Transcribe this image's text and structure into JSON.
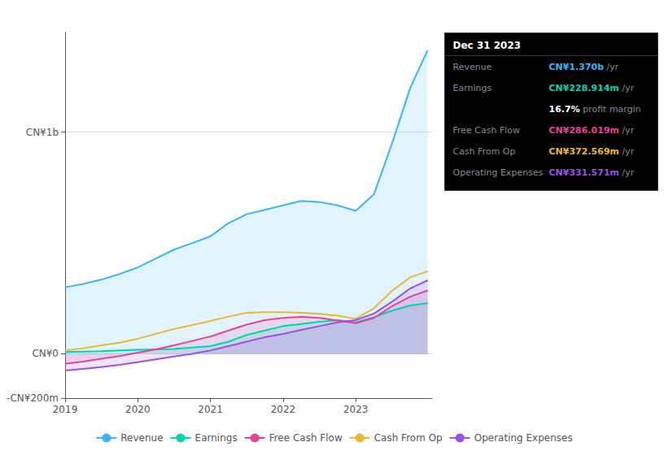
{
  "chart_data": {
    "type": "line",
    "x": [
      2019.0,
      2019.25,
      2019.5,
      2019.75,
      2020.0,
      2020.25,
      2020.5,
      2020.75,
      2021.0,
      2021.25,
      2021.5,
      2021.75,
      2022.0,
      2022.25,
      2022.5,
      2022.75,
      2023.0,
      2023.25,
      2023.5,
      2023.75,
      2023.99
    ],
    "series": [
      {
        "name": "Revenue",
        "color": "#39b4f5",
        "type": "area",
        "values": [
          300,
          315,
          335,
          360,
          390,
          430,
          470,
          500,
          530,
          590,
          630,
          650,
          670,
          690,
          685,
          670,
          645,
          720,
          950,
          1200,
          1370
        ]
      },
      {
        "name": "Earnings",
        "color": "#00d4b0",
        "type": "area",
        "values": [
          8,
          10,
          12,
          15,
          18,
          20,
          22,
          28,
          35,
          55,
          85,
          105,
          125,
          135,
          145,
          152,
          142,
          165,
          195,
          218,
          228.914
        ]
      },
      {
        "name": "Free Cash Flow",
        "color": "#e84393",
        "type": "area",
        "values": [
          -45,
          -35,
          -22,
          -10,
          5,
          20,
          38,
          58,
          78,
          105,
          132,
          152,
          162,
          167,
          162,
          150,
          138,
          162,
          215,
          258,
          286.019
        ]
      },
      {
        "name": "Cash From Op",
        "color": "#e8b830",
        "type": "line",
        "values": [
          15,
          25,
          38,
          50,
          68,
          90,
          112,
          130,
          148,
          168,
          185,
          188,
          188,
          185,
          180,
          172,
          158,
          205,
          285,
          345,
          372.569
        ]
      },
      {
        "name": "Operating Expenses",
        "color": "#9b50e8",
        "type": "area",
        "values": [
          -75,
          -68,
          -60,
          -50,
          -38,
          -25,
          -12,
          0,
          15,
          35,
          55,
          75,
          90,
          108,
          125,
          142,
          152,
          182,
          235,
          295,
          331.571
        ]
      }
    ],
    "xlim": [
      2019,
      2024.05
    ],
    "xticks": [
      2019,
      2020,
      2021,
      2022,
      2023
    ],
    "ylim": [
      -200,
      1450
    ],
    "yticks": [
      {
        "value": -200,
        "label": "-CN¥200m"
      },
      {
        "value": 0,
        "label": "CN¥0"
      },
      {
        "value": 1000,
        "label": "CN¥1b"
      }
    ],
    "grid": true,
    "legend": "bottom",
    "annotations": {
      "title": "Dec 31 2023",
      "rows": [
        {
          "label": "Revenue",
          "value": "CN¥1.370b",
          "suffix": " /yr",
          "color": "#39b4f5"
        },
        {
          "label": "Earnings",
          "value": "CN¥228.914m",
          "suffix": " /yr",
          "color": "#00d4b0"
        },
        {
          "value": "16.7%",
          "suffix": " profit margin",
          "color": "#ffffff"
        },
        {
          "label": "Free Cash Flow",
          "value": "CN¥286.019m",
          "suffix": " /yr",
          "color": "#e84393"
        },
        {
          "label": "Cash From Op",
          "value": "CN¥372.569m",
          "suffix": " /yr",
          "color": "#e8b830"
        },
        {
          "label": "Operating Expenses",
          "value": "CN¥331.571m",
          "suffix": " /yr",
          "color": "#9b50e8"
        }
      ]
    }
  }
}
